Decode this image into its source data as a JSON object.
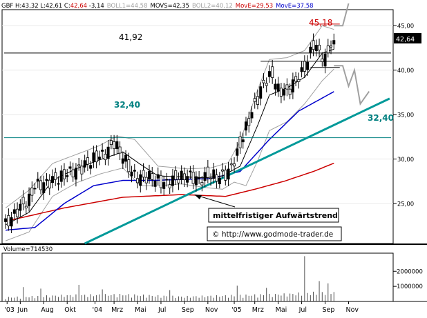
{
  "header": {
    "ticker_line": "GBF H:43,32 L:42,61 C:",
    "close": "42,64",
    "change": "-3,14",
    "boll1": "BOLL1=44,58",
    "movs": "MOVS=42,35",
    "boll2": "BOLL2=40,12",
    "move_red": "MovE=29,53",
    "move_blue": "MovE=37,58"
  },
  "price_tag": "42,64",
  "annotations": {
    "resistance_value": "41,92",
    "high_value": "45,18",
    "support_value_left": "32,40",
    "support_value_right": "32,40",
    "trend_label": "mittelfristiger Aufwärtstrend",
    "copyright": "© http://www.godmode-trader.de"
  },
  "volume_label": "Volume=714530",
  "colors": {
    "candle": "#000000",
    "boll": "#a0a0a0",
    "movs": "#000000",
    "move_red": "#cc0000",
    "move_blue": "#0000cc",
    "trend": "#009999",
    "support": "#008080",
    "high": "#cc0000",
    "forecast": "#a0a0a0",
    "header_red": "#cc0000",
    "header_blue": "#0000cc",
    "header_gray": "#a0a0a0"
  },
  "chart_data": {
    "type": "candlestick",
    "ylabel_values": [
      "45,00",
      "40,00",
      "35,00",
      "30,00",
      "25,00"
    ],
    "y_ticks": [
      45,
      40,
      35,
      30,
      25
    ],
    "ylim": [
      20.5,
      46.8
    ],
    "volume_ticks_labels": [
      "2000000",
      "1000000"
    ],
    "volume_ticks": [
      2000000,
      1000000
    ],
    "volume_ylim": [
      0,
      3200000
    ],
    "x_tick_labels": [
      "'03",
      "Jun",
      "Aug",
      "Okt",
      "'04",
      "Mrz",
      "Mai",
      "Jul",
      "Sep",
      "Nov",
      "'05",
      "Mrz",
      "Mai",
      "Jul",
      "Sep",
      "Nov"
    ],
    "x_tick_positions": [
      0.5,
      5,
      13,
      21,
      30.5,
      37,
      45,
      53,
      61,
      69,
      78,
      85,
      93,
      101,
      109,
      117
    ],
    "n_bars": 132,
    "close_key": [
      [
        0,
        22.6
      ],
      [
        4,
        24.2
      ],
      [
        8,
        25.4
      ],
      [
        10,
        27.0
      ],
      [
        14,
        27.3
      ],
      [
        18,
        27.8
      ],
      [
        22,
        28.5
      ],
      [
        26,
        29.0
      ],
      [
        30,
        30.0
      ],
      [
        34,
        30.6
      ],
      [
        37,
        31.8
      ],
      [
        40,
        30.4
      ],
      [
        43,
        28.5
      ],
      [
        46,
        27.8
      ],
      [
        50,
        28.0
      ],
      [
        54,
        27.2
      ],
      [
        58,
        27.7
      ],
      [
        62,
        28.2
      ],
      [
        66,
        27.6
      ],
      [
        70,
        28.2
      ],
      [
        73,
        27.9
      ],
      [
        76,
        28.5
      ],
      [
        79,
        30.5
      ],
      [
        82,
        33.5
      ],
      [
        85,
        36.0
      ],
      [
        88,
        38.5
      ],
      [
        91,
        39.5
      ],
      [
        93,
        37.8
      ],
      [
        96,
        37.5
      ],
      [
        99,
        38.8
      ],
      [
        101,
        39.6
      ],
      [
        103,
        41.0
      ],
      [
        105,
        43.0
      ],
      [
        107,
        42.0
      ],
      [
        109,
        41.2
      ],
      [
        111,
        43.0
      ],
      [
        112,
        42.64
      ]
    ],
    "resistance": 41.92,
    "support": 32.4,
    "high": 45.18,
    "trendline": [
      [
        27,
        20.5
      ],
      [
        131,
        36.8
      ]
    ],
    "forecast_top": [
      [
        112,
        45.0
      ],
      [
        115,
        45.0
      ],
      [
        117,
        47.5
      ]
    ],
    "forecast_bottom": [
      [
        112,
        40.5
      ],
      [
        115,
        40.5
      ],
      [
        117,
        38.2
      ],
      [
        119,
        40.0
      ],
      [
        121,
        36.2
      ],
      [
        124,
        37.6
      ]
    ],
    "series": [
      {
        "name": "MovE=29,53",
        "key": [
          [
            0,
            23.0
          ],
          [
            20,
            24.5
          ],
          [
            40,
            25.7
          ],
          [
            60,
            26.0
          ],
          [
            75,
            25.8
          ],
          [
            85,
            26.6
          ],
          [
            95,
            27.5
          ],
          [
            105,
            28.6
          ],
          [
            112,
            29.53
          ]
        ]
      },
      {
        "name": "MovE=37,58",
        "key": [
          [
            0,
            22.0
          ],
          [
            10,
            22.3
          ],
          [
            20,
            25.0
          ],
          [
            30,
            27.0
          ],
          [
            40,
            27.6
          ],
          [
            50,
            27.6
          ],
          [
            60,
            27.7
          ],
          [
            70,
            27.8
          ],
          [
            80,
            28.6
          ],
          [
            90,
            32.2
          ],
          [
            100,
            35.4
          ],
          [
            112,
            37.58
          ]
        ]
      },
      {
        "name": "BOLL1=44,58",
        "key": [
          [
            0,
            24.5
          ],
          [
            8,
            26.5
          ],
          [
            16,
            29.5
          ],
          [
            24,
            30.5
          ],
          [
            32,
            31.5
          ],
          [
            38,
            32.6
          ],
          [
            44,
            32.2
          ],
          [
            52,
            29.2
          ],
          [
            62,
            28.9
          ],
          [
            70,
            29.0
          ],
          [
            76,
            29.6
          ],
          [
            80,
            32.0
          ],
          [
            86,
            37.8
          ],
          [
            90,
            41.2
          ],
          [
            96,
            41.4
          ],
          [
            102,
            42.2
          ],
          [
            108,
            45.0
          ],
          [
            112,
            44.58
          ]
        ]
      },
      {
        "name": "BOLL2=40,12",
        "key": [
          [
            0,
            20.8
          ],
          [
            8,
            21.8
          ],
          [
            16,
            25.8
          ],
          [
            24,
            27.3
          ],
          [
            32,
            28.3
          ],
          [
            40,
            29.0
          ],
          [
            46,
            27.0
          ],
          [
            52,
            27.0
          ],
          [
            60,
            27.2
          ],
          [
            68,
            26.8
          ],
          [
            74,
            26.6
          ],
          [
            78,
            27.4
          ],
          [
            82,
            27.0
          ],
          [
            86,
            29.8
          ],
          [
            90,
            33.2
          ],
          [
            96,
            34.2
          ],
          [
            102,
            36.2
          ],
          [
            108,
            38.8
          ],
          [
            112,
            40.12
          ]
        ]
      },
      {
        "name": "MOVS=42,35",
        "key": [
          [
            0,
            22.6
          ],
          [
            8,
            24.0
          ],
          [
            16,
            27.6
          ],
          [
            24,
            28.9
          ],
          [
            32,
            29.9
          ],
          [
            40,
            30.8
          ],
          [
            46,
            29.4
          ],
          [
            52,
            28.1
          ],
          [
            60,
            28.0
          ],
          [
            68,
            27.9
          ],
          [
            74,
            28.1
          ],
          [
            80,
            29.2
          ],
          [
            86,
            33.8
          ],
          [
            90,
            37.2
          ],
          [
            96,
            38.0
          ],
          [
            102,
            39.2
          ],
          [
            108,
            41.9
          ],
          [
            112,
            42.35
          ]
        ]
      }
    ],
    "volume_key": [
      [
        0,
        250000
      ],
      [
        20,
        380000
      ],
      [
        40,
        430000
      ],
      [
        60,
        300000
      ],
      [
        80,
        380000
      ],
      [
        95,
        450000
      ],
      [
        112,
        600000
      ]
    ],
    "volume_spikes": [
      [
        6,
        950000
      ],
      [
        12,
        850000
      ],
      [
        25,
        1100000
      ],
      [
        33,
        800000
      ],
      [
        56,
        750000
      ],
      [
        79,
        1050000
      ],
      [
        89,
        900000
      ],
      [
        102,
        3000000
      ],
      [
        107,
        1350000
      ],
      [
        110,
        1200000
      ]
    ]
  }
}
